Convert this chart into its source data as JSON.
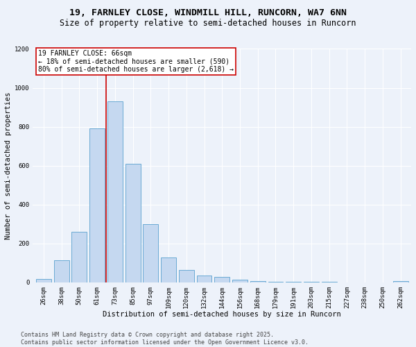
{
  "title_line1": "19, FARNLEY CLOSE, WINDMILL HILL, RUNCORN, WA7 6NN",
  "title_line2": "Size of property relative to semi-detached houses in Runcorn",
  "xlabel": "Distribution of semi-detached houses by size in Runcorn",
  "ylabel": "Number of semi-detached properties",
  "bar_color": "#c5d8f0",
  "bar_edge_color": "#6aaad4",
  "categories": [
    "26sqm",
    "38sqm",
    "50sqm",
    "61sqm",
    "73sqm",
    "85sqm",
    "97sqm",
    "109sqm",
    "120sqm",
    "132sqm",
    "144sqm",
    "156sqm",
    "168sqm",
    "179sqm",
    "191sqm",
    "203sqm",
    "215sqm",
    "227sqm",
    "238sqm",
    "250sqm",
    "262sqm"
  ],
  "values": [
    18,
    113,
    260,
    790,
    930,
    608,
    300,
    128,
    62,
    35,
    28,
    14,
    6,
    3,
    2,
    1,
    1,
    0,
    0,
    0,
    5
  ],
  "ylim": [
    0,
    1200
  ],
  "yticks": [
    0,
    200,
    400,
    600,
    800,
    1000,
    1200
  ],
  "property_line_x": 3.5,
  "annotation_text": "19 FARNLEY CLOSE: 66sqm\n← 18% of semi-detached houses are smaller (590)\n80% of semi-detached houses are larger (2,618) →",
  "annotation_box_color": "#ffffff",
  "annotation_border_color": "#cc0000",
  "vline_color": "#cc0000",
  "background_color": "#edf2fa",
  "grid_color": "#ffffff",
  "footer_text": "Contains HM Land Registry data © Crown copyright and database right 2025.\nContains public sector information licensed under the Open Government Licence v3.0.",
  "title_fontsize": 9.5,
  "subtitle_fontsize": 8.5,
  "axis_label_fontsize": 7.5,
  "tick_fontsize": 6.5,
  "annotation_fontsize": 7,
  "footer_fontsize": 6
}
